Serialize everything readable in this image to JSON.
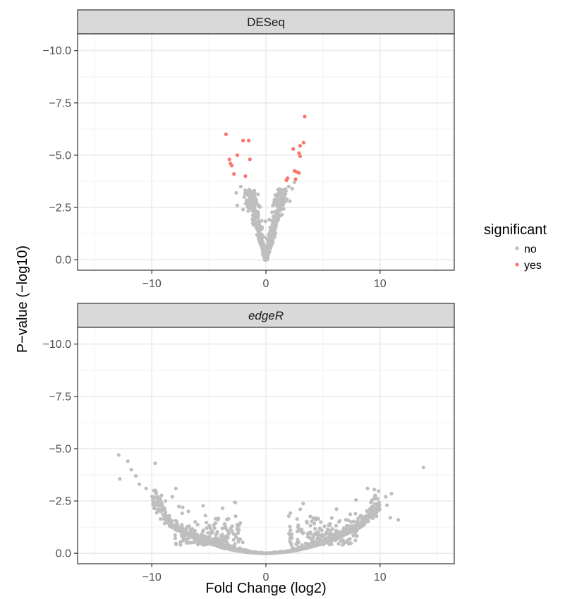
{
  "chart_data": {
    "type": "scatter",
    "xlabel": "Fold Change (log2)",
    "ylabel": "P−value (−log10)",
    "xlim": [
      -16.5,
      16.5
    ],
    "ylim": [
      0.5,
      -10.8
    ],
    "x_ticks": [
      -10,
      0,
      10
    ],
    "x_tick_labels": [
      "−10",
      "0",
      "10"
    ],
    "y_ticks": [
      -10,
      -7.5,
      -5,
      -2.5,
      0
    ],
    "y_tick_labels": [
      "−10.0",
      "−7.5",
      "−5.0",
      "−2.5",
      "0.0"
    ],
    "grid": true,
    "legend": {
      "title": "significant",
      "placement": "right",
      "entries": [
        {
          "label": "no",
          "color": "#bebebe"
        },
        {
          "label": "yes",
          "color": "#f8766d"
        }
      ]
    },
    "panels": [
      {
        "strip": "DESeq",
        "series": [
          {
            "name": "yes",
            "color": "#f8766d",
            "points": [
              [
                -3.5,
                -6.0
              ],
              [
                -3.2,
                -4.8
              ],
              [
                -3.1,
                -4.6
              ],
              [
                -3.0,
                -4.5
              ],
              [
                -2.8,
                -4.1
              ],
              [
                -2.5,
                -5.0
              ],
              [
                -2.0,
                -5.7
              ],
              [
                -1.5,
                -5.7
              ],
              [
                -1.8,
                -4.0
              ],
              [
                -1.4,
                -4.8
              ],
              [
                3.4,
                -6.85
              ],
              [
                3.3,
                -5.6
              ],
              [
                3.0,
                -5.45
              ],
              [
                2.9,
                -5.1
              ],
              [
                3.0,
                -4.95
              ],
              [
                2.4,
                -5.3
              ],
              [
                2.5,
                -4.25
              ],
              [
                2.7,
                -4.2
              ],
              [
                2.9,
                -4.15
              ],
              [
                2.6,
                -3.85
              ],
              [
                1.9,
                -3.9
              ],
              [
                1.8,
                -3.8
              ]
            ]
          }
        ],
        "background": {
          "name": "no",
          "color": "#bebebe",
          "pattern": "V-shaped cloud around 0",
          "extra_points": [
            [
              -2.2,
              -3.5
            ],
            [
              -2.6,
              -3.2
            ],
            [
              -1.9,
              -3.0
            ],
            [
              -2.5,
              -2.6
            ],
            [
              -2.0,
              -2.4
            ],
            [
              2.0,
              -3.5
            ],
            [
              2.3,
              -3.4
            ],
            [
              1.7,
              -3.3
            ],
            [
              2.5,
              -3.7
            ],
            [
              2.1,
              -2.8
            ]
          ]
        }
      },
      {
        "strip": "edgeR",
        "series": [],
        "background": {
          "name": "no",
          "color": "#bebebe",
          "pattern": "U-shaped cloud around 0",
          "extra_points": [
            [
              -12.9,
              -4.7
            ],
            [
              -12.1,
              -4.4
            ],
            [
              -11.8,
              -4.0
            ],
            [
              -11.4,
              -3.7
            ],
            [
              -9.7,
              -4.3
            ],
            [
              -12.8,
              -3.55
            ],
            [
              -11.1,
              -3.3
            ],
            [
              -10.5,
              -3.1
            ],
            [
              -7.9,
              -3.1
            ],
            [
              -8.2,
              -2.7
            ],
            [
              -7.3,
              -2.2
            ],
            [
              -6.8,
              -2.0
            ],
            [
              -5.3,
              -1.8
            ],
            [
              -4.2,
              -1.6
            ],
            [
              -3.6,
              -1.4
            ],
            [
              -9.2,
              -2.0
            ],
            [
              -8.8,
              -2.5
            ],
            [
              -6.2,
              -1.5
            ],
            [
              13.8,
              -4.1
            ],
            [
              8.9,
              -3.1
            ],
            [
              9.5,
              -3.05
            ],
            [
              10.5,
              -2.7
            ],
            [
              11.0,
              -2.85
            ],
            [
              7.9,
              -2.55
            ],
            [
              9.8,
              -2.35
            ],
            [
              11.6,
              -1.6
            ],
            [
              10.9,
              -1.7
            ],
            [
              8.3,
              -1.8
            ],
            [
              7.0,
              -1.6
            ],
            [
              6.4,
              -1.5
            ],
            [
              5.5,
              -1.35
            ],
            [
              4.9,
              -1.1
            ],
            [
              10.6,
              -2.3
            ]
          ]
        }
      }
    ]
  }
}
